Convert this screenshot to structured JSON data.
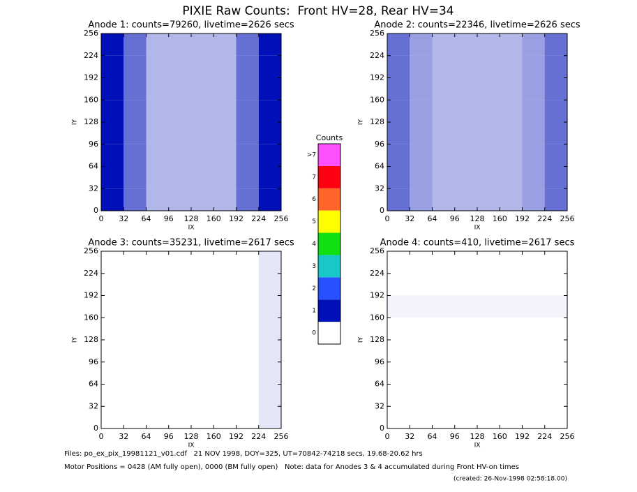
{
  "title": "PIXIE Raw Counts:  Front HV=28, Rear HV=34",
  "chart_data": [
    {
      "type": "heatmap",
      "title": "Anode 1: counts=79260, livetime=2626 secs",
      "xlabel": "IX",
      "ylabel": "IY",
      "xlim": [
        0,
        256
      ],
      "ylim": [
        0,
        256
      ],
      "xticks": [
        0,
        32,
        64,
        96,
        128,
        160,
        192,
        224,
        256
      ],
      "yticks": [
        0,
        32,
        64,
        96,
        128,
        160,
        192,
        224,
        256
      ],
      "xbins": [
        0,
        32,
        64,
        96,
        128,
        160,
        192,
        224,
        256
      ],
      "ybins": [
        0,
        32,
        64,
        96,
        128,
        160,
        192,
        224,
        256
      ],
      "values": [
        [
          1.5,
          0.6,
          0.3,
          0.3,
          0.3,
          0.3,
          0.6,
          1.5
        ],
        [
          1.5,
          0.6,
          0.3,
          0.3,
          0.3,
          0.3,
          0.6,
          1.5
        ],
        [
          1.5,
          0.6,
          0.3,
          0.3,
          0.3,
          0.3,
          0.6,
          1.5
        ],
        [
          1.5,
          0.6,
          0.3,
          0.3,
          0.3,
          0.3,
          0.6,
          1.5
        ],
        [
          1.5,
          0.6,
          0.3,
          0.3,
          0.3,
          0.3,
          0.6,
          1.5
        ],
        [
          1.5,
          0.6,
          0.3,
          0.3,
          0.3,
          0.3,
          0.6,
          1.5
        ],
        [
          1.5,
          0.6,
          0.3,
          0.3,
          0.3,
          0.3,
          0.6,
          1.5
        ],
        [
          1.5,
          0.6,
          0.3,
          0.3,
          0.3,
          0.3,
          0.6,
          1.5
        ]
      ]
    },
    {
      "type": "heatmap",
      "title": "Anode 2: counts=22346, livetime=2626 secs",
      "xlabel": "IX",
      "ylabel": "IY",
      "xlim": [
        0,
        256
      ],
      "ylim": [
        0,
        256
      ],
      "xticks": [
        0,
        32,
        64,
        96,
        128,
        160,
        192,
        224,
        256
      ],
      "yticks": [
        0,
        32,
        64,
        96,
        128,
        160,
        192,
        224,
        256
      ],
      "xbins": [
        0,
        32,
        64,
        96,
        128,
        160,
        192,
        224,
        256
      ],
      "ybins": [
        0,
        32,
        64,
        96,
        128,
        160,
        192,
        224,
        256
      ],
      "values": [
        [
          0.6,
          0.4,
          0.3,
          0.3,
          0.3,
          0.3,
          0.4,
          0.6
        ],
        [
          0.6,
          0.4,
          0.3,
          0.3,
          0.3,
          0.3,
          0.4,
          0.6
        ],
        [
          0.6,
          0.4,
          0.3,
          0.3,
          0.3,
          0.3,
          0.4,
          0.6
        ],
        [
          0.6,
          0.4,
          0.3,
          0.3,
          0.3,
          0.3,
          0.4,
          0.6
        ],
        [
          0.6,
          0.4,
          0.3,
          0.3,
          0.3,
          0.3,
          0.4,
          0.6
        ],
        [
          0.6,
          0.4,
          0.3,
          0.3,
          0.3,
          0.3,
          0.4,
          0.6
        ],
        [
          0.6,
          0.4,
          0.3,
          0.3,
          0.3,
          0.3,
          0.4,
          0.6
        ],
        [
          0.6,
          0.4,
          0.3,
          0.3,
          0.3,
          0.3,
          0.4,
          0.6
        ]
      ]
    },
    {
      "type": "heatmap",
      "title": "Anode 3: counts=35231, livetime=2617 secs",
      "xlabel": "IX",
      "ylabel": "IY",
      "xlim": [
        0,
        256
      ],
      "ylim": [
        0,
        256
      ],
      "xticks": [
        0,
        32,
        64,
        96,
        128,
        160,
        192,
        224,
        256
      ],
      "yticks": [
        0,
        32,
        64,
        96,
        128,
        160,
        192,
        224,
        256
      ],
      "xbins": [
        0,
        32,
        64,
        96,
        128,
        160,
        192,
        224,
        256
      ],
      "ybins": [
        0,
        32,
        64,
        96,
        128,
        160,
        192,
        224,
        256
      ],
      "values": [
        [
          0,
          0,
          0,
          0,
          0,
          0,
          0,
          0.1
        ],
        [
          0,
          0,
          0,
          0,
          0,
          0,
          0,
          0.1
        ],
        [
          0,
          0,
          0,
          0,
          0,
          0,
          0,
          0.1
        ],
        [
          0,
          0,
          0,
          0,
          0,
          0,
          0,
          0.1
        ],
        [
          0,
          0,
          0,
          0,
          0,
          0,
          0,
          0.1
        ],
        [
          0,
          0,
          0,
          0,
          0,
          0,
          0,
          0.1
        ],
        [
          0,
          0,
          0,
          0,
          0,
          0,
          0,
          0.1
        ],
        [
          0,
          0,
          0,
          0,
          0,
          0,
          0,
          0.1
        ]
      ]
    },
    {
      "type": "heatmap",
      "title": "Anode 4: counts=410, livetime=2617 secs",
      "xlabel": "IX",
      "ylabel": "IY",
      "xlim": [
        0,
        256
      ],
      "ylim": [
        0,
        256
      ],
      "xticks": [
        0,
        32,
        64,
        96,
        128,
        160,
        192,
        224,
        256
      ],
      "yticks": [
        0,
        32,
        64,
        96,
        128,
        160,
        192,
        224,
        256
      ],
      "xbins": [
        0,
        32,
        64,
        96,
        128,
        160,
        192,
        224,
        256
      ],
      "ybins": [
        0,
        32,
        64,
        96,
        128,
        160,
        192,
        224,
        256
      ],
      "values": [
        [
          0,
          0,
          0,
          0,
          0,
          0,
          0,
          0
        ],
        [
          0,
          0,
          0,
          0,
          0,
          0,
          0,
          0
        ],
        [
          0,
          0,
          0,
          0,
          0,
          0,
          0,
          0
        ],
        [
          0,
          0,
          0,
          0,
          0,
          0,
          0,
          0
        ],
        [
          0,
          0,
          0,
          0,
          0,
          0,
          0,
          0
        ],
        [
          0.05,
          0.05,
          0.05,
          0.05,
          0.05,
          0.05,
          0.05,
          0.05
        ],
        [
          0,
          0,
          0,
          0,
          0,
          0,
          0,
          0
        ],
        [
          0,
          0,
          0,
          0,
          0,
          0,
          0,
          0
        ]
      ]
    }
  ],
  "colorbar": {
    "title": "Counts",
    "labels": [
      "0",
      "1",
      "2",
      "3",
      "4",
      "5",
      "6",
      "7",
      ">7"
    ],
    "colors": [
      "#ffffff",
      "#0010b8",
      "#2850ff",
      "#18c8c8",
      "#10e010",
      "#ffff00",
      "#ff6428",
      "#ff0010",
      "#ff50ff"
    ]
  },
  "footer": [
    "Files: po_ex_pix_19981121_v01.cdf   21 NOV 1998, DOY=325, UT=70842-74218 secs, 19.68-20.62 hrs",
    "Motor Positions = 0428 (AM fully open), 0000 (BM fully open)   Note: data for Anodes 3 & 4 accumulated during Front HV-on times",
    "(created: 26-Nov-1998 02:58:18.00)"
  ]
}
